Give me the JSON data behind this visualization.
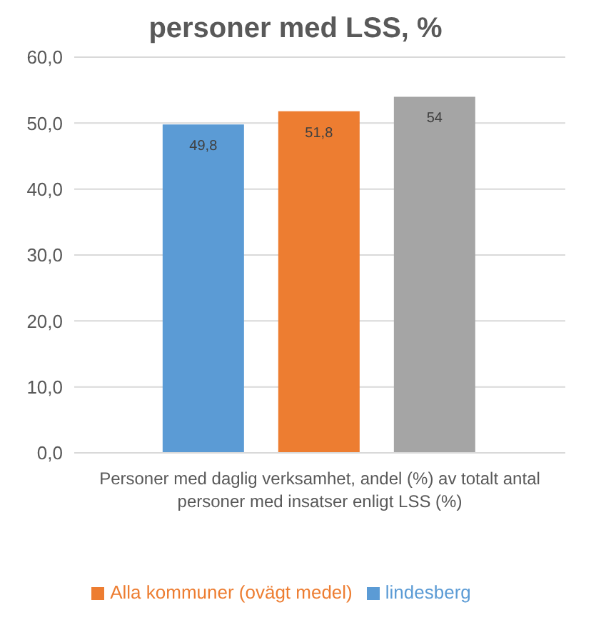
{
  "chart_data": {
    "type": "bar",
    "title": "personer med LSS, %",
    "categories": [
      "Personer med daglig verksamhet, andel (%) av totalt antal personer med insatser enligt LSS (%)"
    ],
    "series": [
      {
        "name": "lindesberg",
        "color": "#5b9bd5",
        "values": [
          49.8
        ],
        "value_labels": [
          "49,8"
        ]
      },
      {
        "name": "Alla kommuner (ovägt medel)",
        "color": "#ed7d31",
        "values": [
          51.8
        ],
        "value_labels": [
          "51,8"
        ]
      },
      {
        "color": "#a5a5a5",
        "values": [
          54
        ],
        "value_labels": [
          "54"
        ]
      }
    ],
    "ylim": [
      0,
      60
    ],
    "yticks": [
      {
        "value": 0,
        "label": "0,0"
      },
      {
        "value": 10,
        "label": "10,0"
      },
      {
        "value": 20,
        "label": "20,0"
      },
      {
        "value": 30,
        "label": "30,0"
      },
      {
        "value": 40,
        "label": "40,0"
      },
      {
        "value": 50,
        "label": "50,0"
      },
      {
        "value": 60,
        "label": "60,0"
      }
    ],
    "grid": "y",
    "legend": "bottom"
  }
}
